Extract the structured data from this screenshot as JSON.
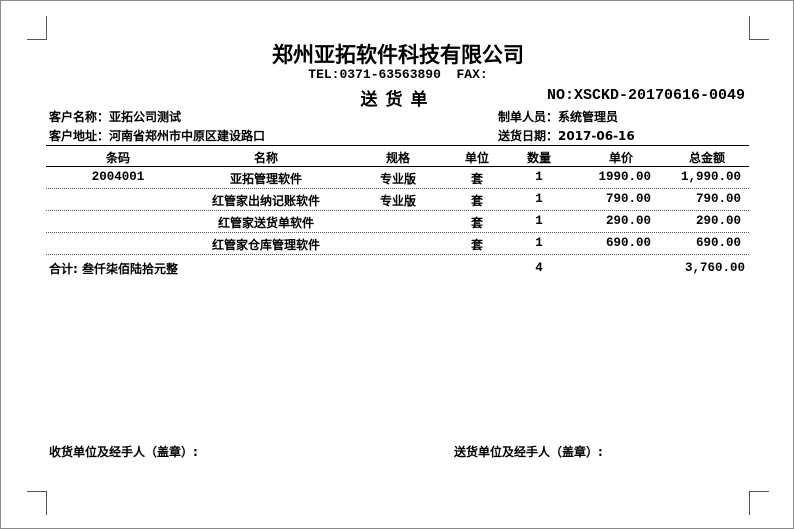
{
  "company": "郑州亚拓软件科技有限公司",
  "contact": "TEL:0371-63563890  FAX:",
  "doc_title": "送货单",
  "doc_no": "NO:XSCKD-20170616-0049",
  "customer_name": "客户名称：亚拓公司测试",
  "customer_address": "客户地址：河南省郑州市中原区建设路口",
  "maker": "制单人员：系统管理员",
  "delivery_date": "送货日期：2017-06-16",
  "table": {
    "headers": [
      "条码",
      "名称",
      "规格",
      "单位",
      "数量",
      "单价",
      "总金额"
    ],
    "rows": [
      [
        "2004001",
        "亚拓管理软件",
        "专业版",
        "套",
        "1",
        "1990.00",
        "1,990.00"
      ],
      [
        "",
        "红管家出纳记账软件",
        "专业版",
        "套",
        "1",
        "790.00",
        "790.00"
      ],
      [
        "",
        "红管家送货单软件",
        "",
        "套",
        "1",
        "290.00",
        "290.00"
      ],
      [
        "",
        "红管家仓库管理软件",
        "",
        "套",
        "1",
        "690.00",
        "690.00"
      ]
    ],
    "total_label": "合计: 叁仟柒佰陆拾元整",
    "total_qty": "4",
    "total_amount": "3,760.00"
  },
  "receiver_sign": "收货单位及经手人（盖章）:",
  "sender_sign": "送货单位及经手人（盖章）:"
}
